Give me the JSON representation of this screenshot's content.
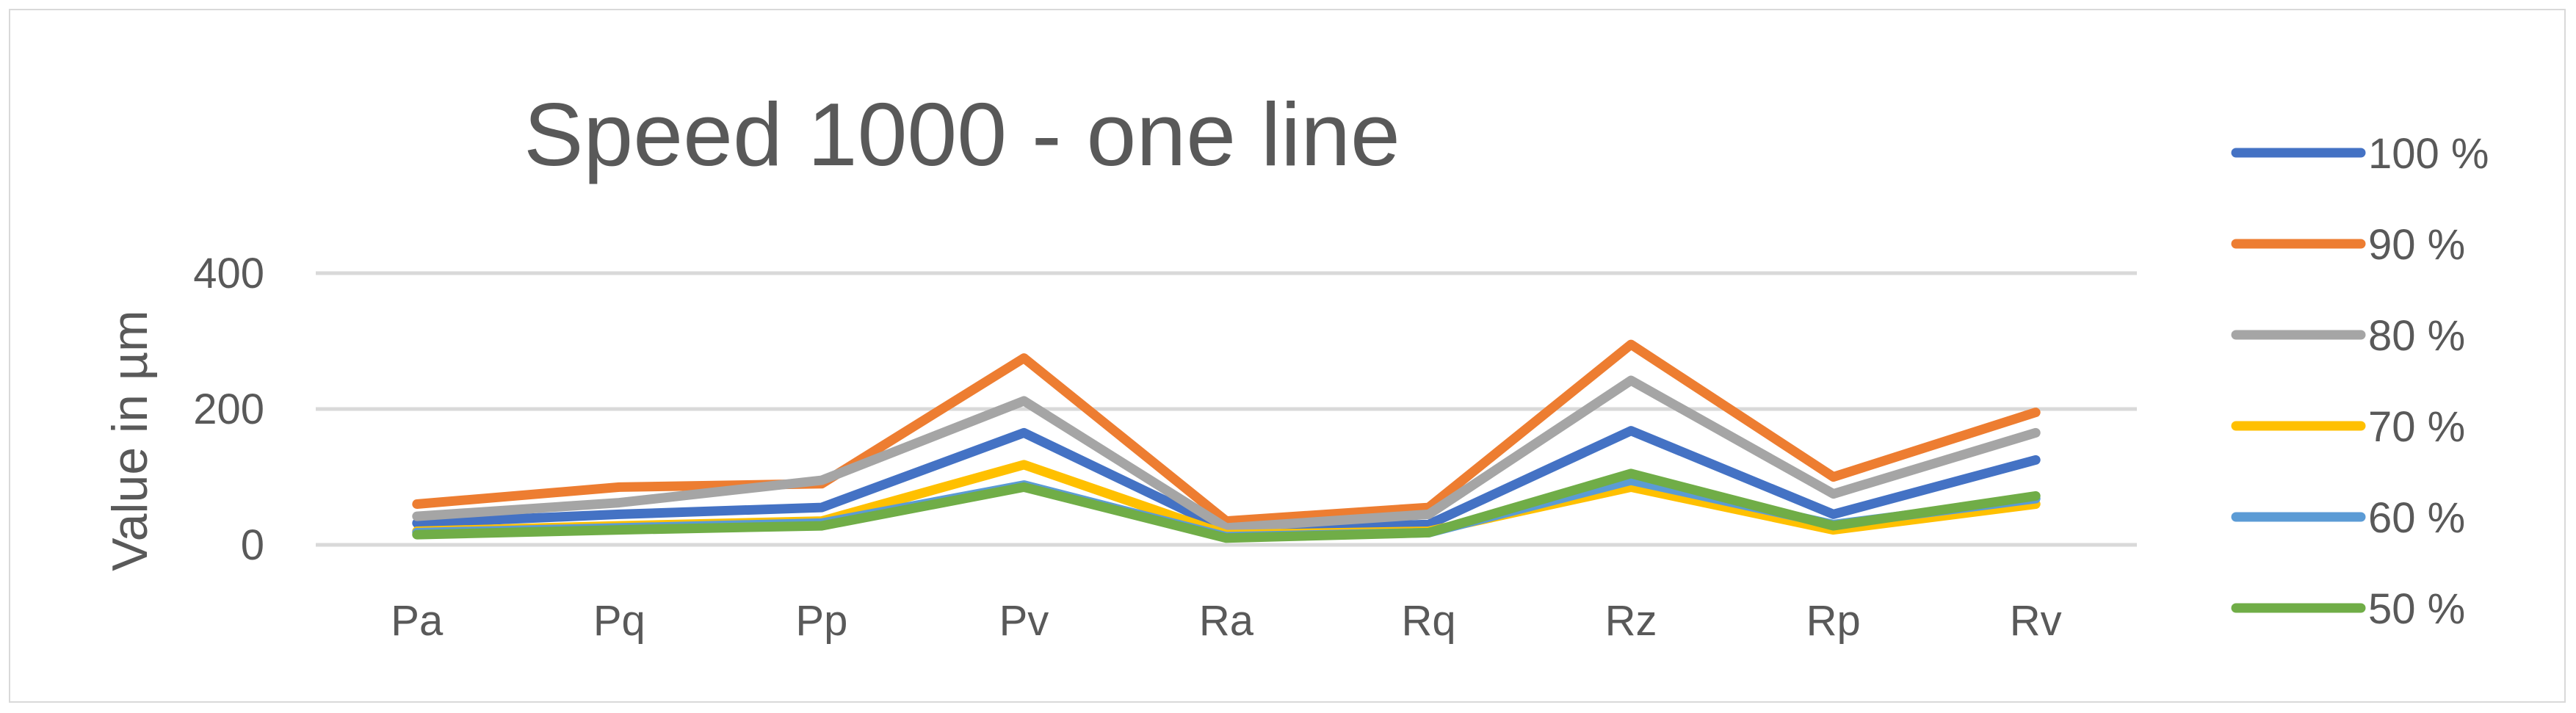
{
  "chart_data": {
    "type": "line",
    "title": "Speed 1000 - one line",
    "xlabel": "",
    "ylabel": "Value in µm",
    "categories": [
      "Pa",
      "Pq",
      "Pp",
      "Pv",
      "Ra",
      "Rq",
      "Rz",
      "Rp",
      "Rv"
    ],
    "yticks": [
      "0",
      "200",
      "400"
    ],
    "ylim": [
      0,
      400
    ],
    "grid": true,
    "legend_position": "right",
    "series": [
      {
        "name": "100 %",
        "color": "#4472c4",
        "values": [
          32,
          45,
          55,
          165,
          22,
          30,
          168,
          45,
          125
        ]
      },
      {
        "name": "90 %",
        "color": "#ed7d31",
        "values": [
          60,
          85,
          90,
          275,
          35,
          55,
          295,
          100,
          195
        ]
      },
      {
        "name": "80 %",
        "color": "#a5a5a5",
        "values": [
          42,
          62,
          95,
          212,
          25,
          45,
          242,
          75,
          165
        ]
      },
      {
        "name": "70 %",
        "color": "#ffc000",
        "values": [
          20,
          28,
          35,
          118,
          15,
          20,
          85,
          22,
          60
        ]
      },
      {
        "name": "60 %",
        "color": "#5b9bd5",
        "values": [
          18,
          25,
          32,
          88,
          12,
          18,
          95,
          30,
          68
        ]
      },
      {
        "name": "50 %",
        "color": "#70ad47",
        "values": [
          15,
          22,
          28,
          85,
          10,
          18,
          105,
          28,
          72
        ]
      }
    ]
  }
}
